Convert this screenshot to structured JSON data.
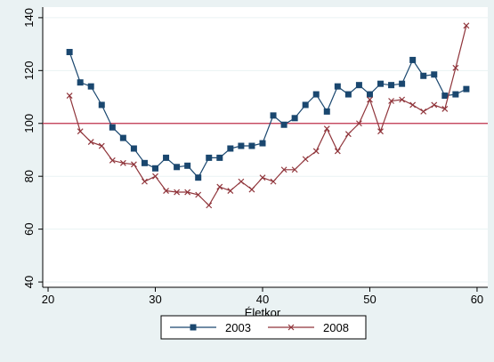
{
  "chart_data": {
    "type": "line",
    "title": "",
    "xlabel": "Életkor",
    "ylabel": "",
    "xlim": [
      19.5,
      61
    ],
    "ylim": [
      38,
      144
    ],
    "xticks": [
      20,
      30,
      40,
      50,
      60
    ],
    "yticks": [
      40,
      60,
      80,
      100,
      120,
      140
    ],
    "grid": "horizontal",
    "reference_line": {
      "y": 100,
      "color": "#c0304a"
    },
    "legend": {
      "position": "bottom"
    },
    "colors": {
      "plot_background": "#ffffff",
      "outer_background": "#eaf2f3",
      "gridline": "#eaf2f3"
    },
    "x": [
      22,
      23,
      24,
      25,
      26,
      27,
      28,
      29,
      30,
      31,
      32,
      33,
      34,
      35,
      36,
      37,
      38,
      39,
      40,
      41,
      42,
      43,
      44,
      45,
      46,
      47,
      48,
      49,
      50,
      51,
      52,
      53,
      54,
      55,
      56,
      57,
      58,
      59
    ],
    "series": [
      {
        "name": "2003",
        "color": "#1a476f",
        "marker": "square",
        "values": [
          127,
          115.5,
          114,
          107,
          98.5,
          94.5,
          90.5,
          85,
          83,
          87,
          83.5,
          84,
          79.5,
          87,
          87,
          90.5,
          91.5,
          91.5,
          92.5,
          103,
          99.5,
          102,
          107,
          111,
          104.5,
          114,
          111,
          114.5,
          111,
          115,
          114.5,
          115,
          124,
          118,
          118.5,
          110.5,
          111,
          113
        ]
      },
      {
        "name": "2008",
        "color": "#90353b",
        "marker": "x",
        "values": [
          110.5,
          97,
          93,
          91.5,
          86,
          85,
          84.5,
          78,
          80,
          74.5,
          74,
          74,
          73,
          69,
          76,
          74.5,
          78,
          75,
          79.5,
          78,
          82.5,
          82.5,
          86.5,
          89.5,
          98,
          89.5,
          96,
          100,
          109,
          97,
          108.5,
          109,
          107,
          104.5,
          107,
          105.5,
          121,
          137
        ]
      }
    ]
  }
}
